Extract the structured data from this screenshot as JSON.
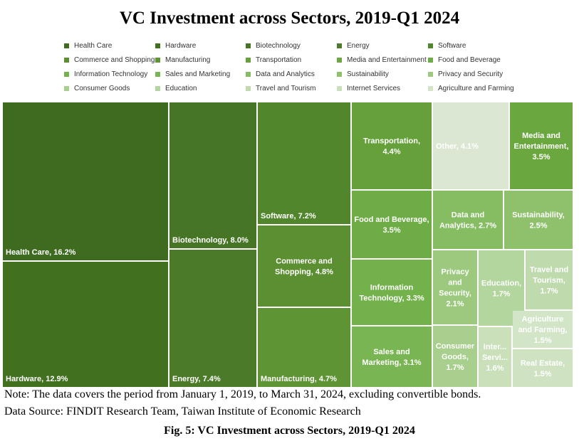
{
  "chart_data": {
    "type": "treemap",
    "title": "VC Investment across Sectors, 2019-Q1 2024",
    "legend_position": "top",
    "legend": [
      {
        "label": "Health Care",
        "color": "#3e6b1f"
      },
      {
        "label": "Hardware",
        "color": "#41701f"
      },
      {
        "label": "Biotechnology",
        "color": "#467525"
      },
      {
        "label": "Energy",
        "color": "#4b7b28"
      },
      {
        "label": "Software",
        "color": "#52862c"
      },
      {
        "label": "Commerce and Shopping",
        "color": "#5b8f32"
      },
      {
        "label": "Manufacturing",
        "color": "#5e9433"
      },
      {
        "label": "Transportation",
        "color": "#66a03a"
      },
      {
        "label": "Media and Entertainment",
        "color": "#6aa83f"
      },
      {
        "label": "Food and Beverage",
        "color": "#6ead45"
      },
      {
        "label": "Information Technology",
        "color": "#73b14b"
      },
      {
        "label": "Sales and Marketing",
        "color": "#7ab553"
      },
      {
        "label": "Data and Analytics",
        "color": "#86bd63"
      },
      {
        "label": "Sustainability",
        "color": "#8fc16d"
      },
      {
        "label": "Privacy and Security",
        "color": "#9cc97e"
      },
      {
        "label": "Consumer Goods",
        "color": "#a8cf8e"
      },
      {
        "label": "Education",
        "color": "#b3d59e"
      },
      {
        "label": "Travel and Tourism",
        "color": "#bfdbae"
      },
      {
        "label": "Internet Services",
        "color": "#c9e0bb"
      },
      {
        "label": "Agriculture and Farming",
        "color": "#d2e5c7"
      }
    ],
    "series": [
      {
        "label": "Health Care",
        "value": 16.2,
        "tile_text": "Health Care, 16.2%",
        "color": "#3e6b1f"
      },
      {
        "label": "Hardware",
        "value": 12.9,
        "tile_text": "Hardware, 12.9%",
        "color": "#41701f"
      },
      {
        "label": "Biotechnology",
        "value": 8.0,
        "tile_text": "Biotechnology, 8.0%",
        "color": "#467525"
      },
      {
        "label": "Energy",
        "value": 7.4,
        "tile_text": "Energy, 7.4%",
        "color": "#4b7b28"
      },
      {
        "label": "Software",
        "value": 7.2,
        "tile_text": "Software, 7.2%",
        "color": "#52862c"
      },
      {
        "label": "Commerce and Shopping",
        "value": 4.8,
        "tile_text": "Commerce and\nShopping, 4.8%",
        "color": "#5b8f32"
      },
      {
        "label": "Manufacturing",
        "value": 4.7,
        "tile_text": "Manufacturing, 4.7%",
        "color": "#5e9433"
      },
      {
        "label": "Transportation",
        "value": 4.4,
        "tile_text": "Transportation,\n4.4%",
        "color": "#66a03a"
      },
      {
        "label": "Other",
        "value": 4.1,
        "tile_text": "Other, 4.1%",
        "color": "#dbe7d3"
      },
      {
        "label": "Media and Entertainment",
        "value": 3.5,
        "tile_text": "Media and\nEntertainment,\n3.5%",
        "color": "#6aa83f"
      },
      {
        "label": "Food and Beverage",
        "value": 3.5,
        "tile_text": "Food and Beverage,\n3.5%",
        "color": "#6ead45"
      },
      {
        "label": "Information Technology",
        "value": 3.3,
        "tile_text": "Information\nTechnology, 3.3%",
        "color": "#73b14b"
      },
      {
        "label": "Sales and Marketing",
        "value": 3.1,
        "tile_text": "Sales and\nMarketing, 3.1%",
        "color": "#7ab553"
      },
      {
        "label": "Data and Analytics",
        "value": 2.7,
        "tile_text": "Data and\nAnalytics, 2.7%",
        "color": "#86bd63"
      },
      {
        "label": "Sustainability",
        "value": 2.5,
        "tile_text": "Sustainability,\n2.5%",
        "color": "#8fc16d"
      },
      {
        "label": "Privacy and Security",
        "value": 2.1,
        "tile_text": "Privacy\nand\nSecurity,\n2.1%",
        "color": "#9cc97e"
      },
      {
        "label": "Consumer Goods",
        "value": 1.7,
        "tile_text": "Consumer\nGoods,\n1.7%",
        "color": "#a8cf8e"
      },
      {
        "label": "Education",
        "value": 1.7,
        "tile_text": "Education,\n1.7%",
        "color": "#b3d59e"
      },
      {
        "label": "Travel and Tourism",
        "value": 1.7,
        "tile_text": "Travel and\nTourism,\n1.7%",
        "color": "#bfdbae"
      },
      {
        "label": "Internet Services",
        "value": 1.6,
        "tile_text": "Inter...\nServi...\n1.6%",
        "color": "#c9e0bb"
      },
      {
        "label": "Agriculture and Farming",
        "value": 1.5,
        "tile_text": "Agriculture\nand Farming,\n1.5%",
        "color": "#d2e5c7"
      },
      {
        "label": "Real Estate",
        "value": 1.5,
        "tile_text": "Real Estate,\n1.5%",
        "color": "#cfe3c3"
      }
    ]
  },
  "note": "Note: The data covers the period from January 1, 2019, to March 31, 2024, excluding convertible bonds.",
  "source": "Data Source: FINDIT Research Team, Taiwan Institute of Economic Research",
  "caption": "Fig. 5: VC Investment across Sectors, 2019-Q1 2024"
}
